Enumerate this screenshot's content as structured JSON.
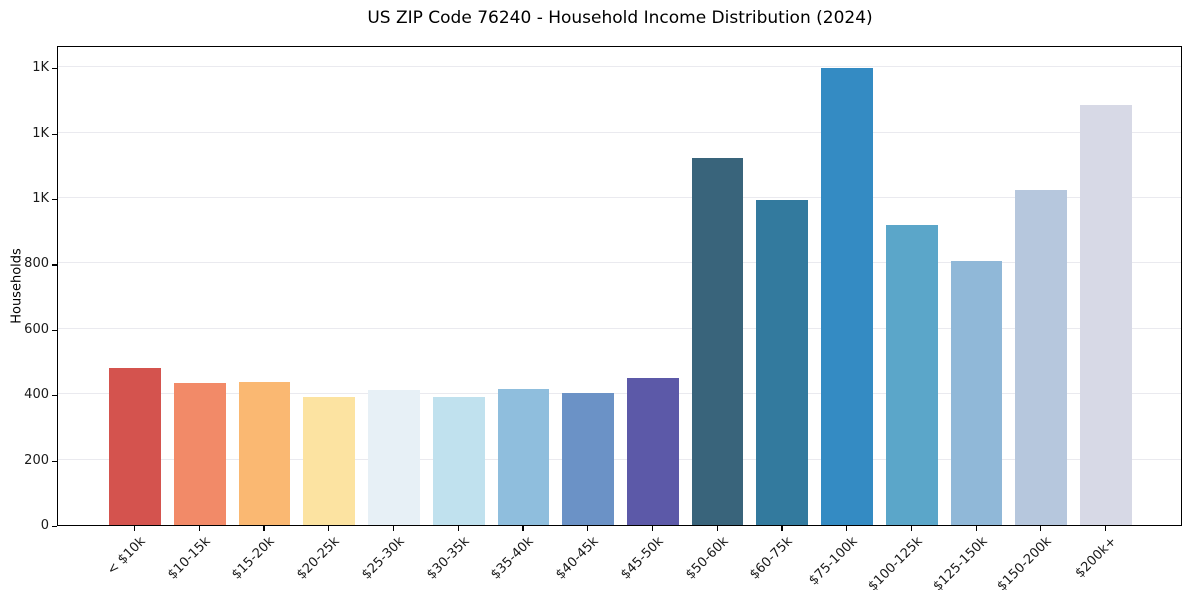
{
  "chart_data": {
    "type": "bar",
    "title": "US ZIP Code 76240 - Household Income Distribution (2024)",
    "xlabel": "",
    "ylabel": "Households",
    "categories": [
      "< $10k",
      "$10-15k",
      "$15-20k",
      "$20-25k",
      "$25-30k",
      "$30-35k",
      "$35-40k",
      "$40-45k",
      "$45-50k",
      "$50-60k",
      "$60-75k",
      "$75-100k",
      "$100-125k",
      "$125-150k",
      "$150-200k",
      "$200k+"
    ],
    "values": [
      481,
      434,
      438,
      391,
      412,
      391,
      417,
      404,
      451,
      1121,
      994,
      1397,
      918,
      807,
      1026,
      1286
    ],
    "bar_colors": [
      "#d4534e",
      "#f28a68",
      "#fab872",
      "#fce3a1",
      "#e7f0f6",
      "#c0e1ee",
      "#8fbedd",
      "#6b92c6",
      "#5c59a8",
      "#39647b",
      "#337a9e",
      "#348bc3",
      "#5ba6c9",
      "#90b8d8",
      "#b6c7dd",
      "#d7d9e6"
    ],
    "ylim": [
      0,
      1468
    ],
    "yticks": {
      "values": [
        0,
        200,
        400,
        600,
        800,
        1000,
        1200,
        1400
      ],
      "labels": [
        "0",
        "200",
        "400",
        "600",
        "800",
        "1K",
        "1K",
        "1K"
      ]
    },
    "grid": "horizontal",
    "legend": "none",
    "colors": {
      "grid_color": "#eaeaef",
      "axis_color": "#000000",
      "tick_text_color": "#1a1a1a",
      "background": "#ffffff"
    },
    "layout": {
      "bar_width_ratio": 0.8,
      "x_units_total": 17.38,
      "x_left_pad_units": 1.19,
      "x_tick_rotation_deg": 45
    }
  }
}
